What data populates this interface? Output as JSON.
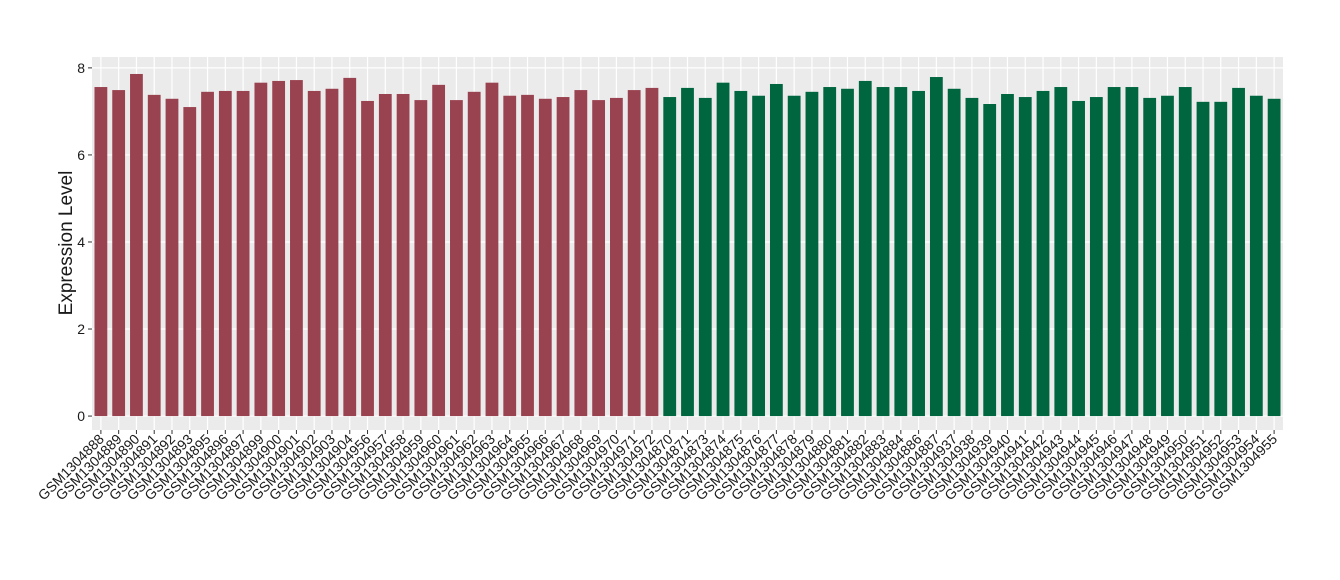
{
  "chart_data": {
    "type": "bar",
    "y_label": "Expression Level",
    "categories": [
      "GSM1304888",
      "GSM1304889",
      "GSM1304890",
      "GSM1304891",
      "GSM1304892",
      "GSM1304893",
      "GSM1304895",
      "GSM1304896",
      "GSM1304897",
      "GSM1304899",
      "GSM1304900",
      "GSM1304901",
      "GSM1304902",
      "GSM1304903",
      "GSM1304904",
      "GSM1304956",
      "GSM1304957",
      "GSM1304958",
      "GSM1304959",
      "GSM1304960",
      "GSM1304961",
      "GSM1304962",
      "GSM1304963",
      "GSM1304964",
      "GSM1304965",
      "GSM1304966",
      "GSM1304967",
      "GSM1304968",
      "GSM1304969",
      "GSM1304970",
      "GSM1304971",
      "GSM1304972",
      "GSM1304870",
      "GSM1304871",
      "GSM1304873",
      "GSM1304874",
      "GSM1304875",
      "GSM1304876",
      "GSM1304877",
      "GSM1304878",
      "GSM1304879",
      "GSM1304880",
      "GSM1304881",
      "GSM1304882",
      "GSM1304883",
      "GSM1304884",
      "GSM1304886",
      "GSM1304887",
      "GSM1304937",
      "GSM1304938",
      "GSM1304939",
      "GSM1304940",
      "GSM1304941",
      "GSM1304942",
      "GSM1304943",
      "GSM1304944",
      "GSM1304945",
      "GSM1304946",
      "GSM1304947",
      "GSM1304948",
      "GSM1304949",
      "GSM1304950",
      "GSM1304951",
      "GSM1304952",
      "GSM1304953",
      "GSM1304954",
      "GSM1304955"
    ],
    "values": [
      7.56,
      7.49,
      7.86,
      7.38,
      7.29,
      7.1,
      7.45,
      7.47,
      7.47,
      7.66,
      7.7,
      7.72,
      7.47,
      7.52,
      7.77,
      7.24,
      7.4,
      7.4,
      7.26,
      7.61,
      7.26,
      7.45,
      7.66,
      7.36,
      7.38,
      7.29,
      7.33,
      7.49,
      7.26,
      7.31,
      7.49,
      7.54,
      7.33,
      7.54,
      7.31,
      7.66,
      7.47,
      7.36,
      7.63,
      7.36,
      7.45,
      7.56,
      7.52,
      7.7,
      7.56,
      7.56,
      7.47,
      7.79,
      7.52,
      7.31,
      7.17,
      7.4,
      7.33,
      7.47,
      7.56,
      7.24,
      7.33,
      7.56,
      7.56,
      7.31,
      7.36,
      7.56,
      7.22,
      7.22,
      7.54,
      7.36,
      7.29
    ],
    "bar_colors": [
      "#9a4350",
      "#9a4350",
      "#9a4350",
      "#9a4350",
      "#9a4350",
      "#9a4350",
      "#9a4350",
      "#9a4350",
      "#9a4350",
      "#9a4350",
      "#9a4350",
      "#9a4350",
      "#9a4350",
      "#9a4350",
      "#9a4350",
      "#9a4350",
      "#9a4350",
      "#9a4350",
      "#9a4350",
      "#9a4350",
      "#9a4350",
      "#9a4350",
      "#9a4350",
      "#9a4350",
      "#9a4350",
      "#9a4350",
      "#9a4350",
      "#9a4350",
      "#9a4350",
      "#9a4350",
      "#9a4350",
      "#9a4350",
      "#006640",
      "#006640",
      "#006640",
      "#006640",
      "#006640",
      "#006640",
      "#006640",
      "#006640",
      "#006640",
      "#006640",
      "#006640",
      "#006640",
      "#006640",
      "#006640",
      "#006640",
      "#006640",
      "#006640",
      "#006640",
      "#006640",
      "#006640",
      "#006640",
      "#006640",
      "#006640",
      "#006640",
      "#006640",
      "#006640",
      "#006640",
      "#006640",
      "#006640",
      "#006640",
      "#006640",
      "#006640",
      "#006640",
      "#006640",
      "#006640"
    ],
    "ylim": [
      -0.32,
      8.25
    ],
    "yticks": [
      0,
      2,
      4,
      6,
      8
    ],
    "grid": true
  }
}
